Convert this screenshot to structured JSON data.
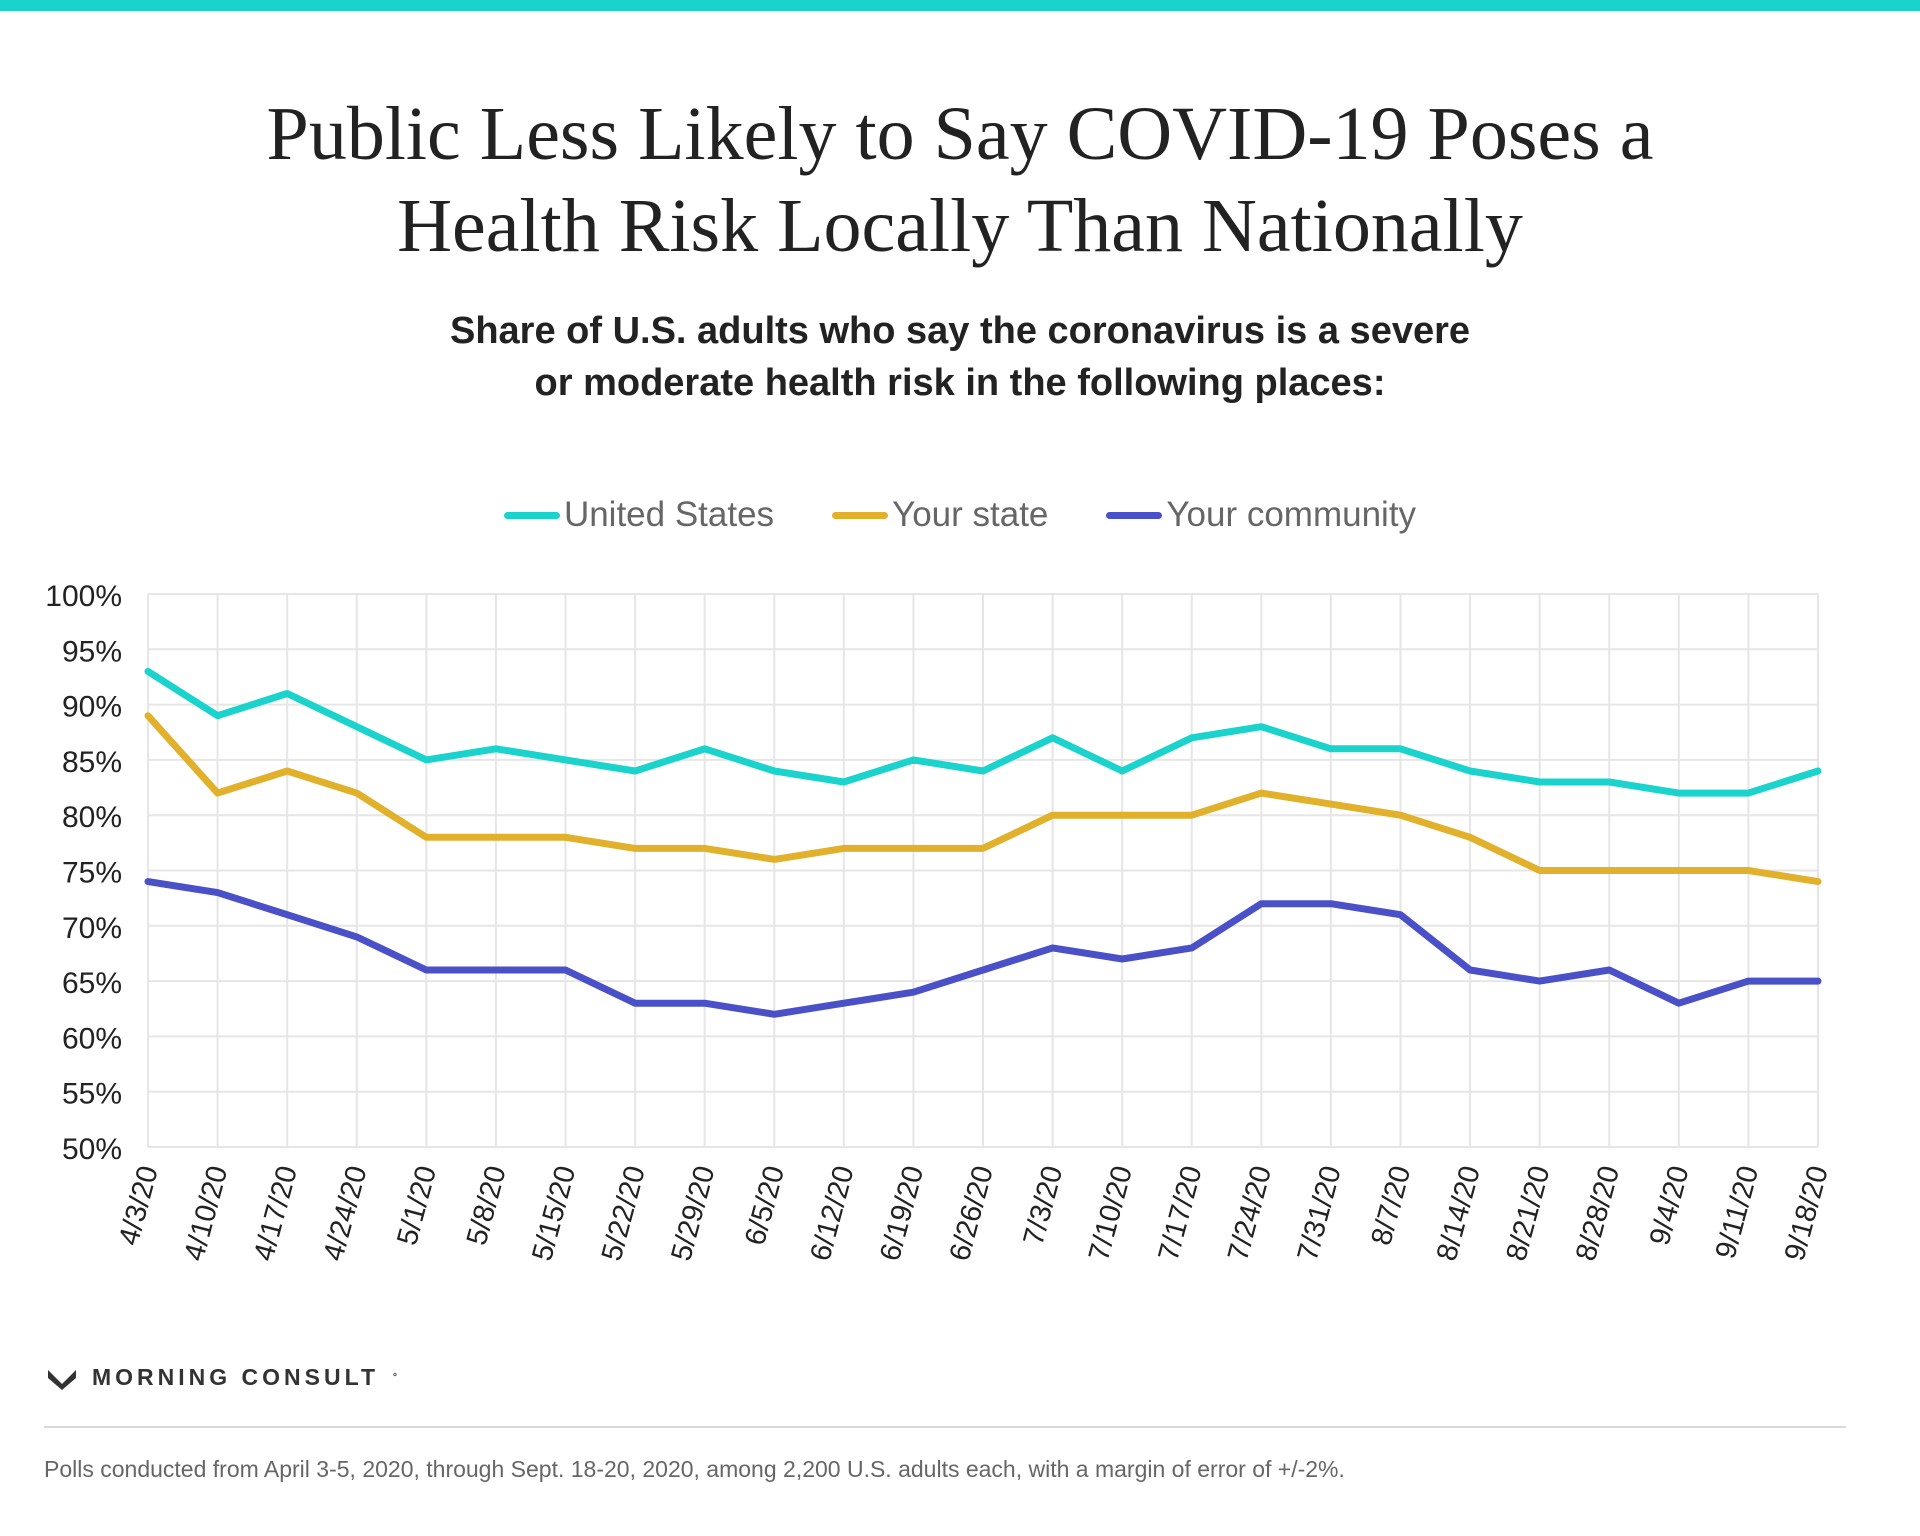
{
  "header": {
    "title_line1": "Public Less Likely to Say COVID-19 Poses a",
    "title_line2": "Health Risk Locally Than Nationally",
    "subtitle_line1": "Share of U.S. adults who say the coronavirus is a severe",
    "subtitle_line2": "or moderate health risk in the following places:"
  },
  "chart_data": {
    "type": "line",
    "x": [
      "4/3/20",
      "4/10/20",
      "4/17/20",
      "4/24/20",
      "5/1/20",
      "5/8/20",
      "5/15/20",
      "5/22/20",
      "5/29/20",
      "6/5/20",
      "6/12/20",
      "6/19/20",
      "6/26/20",
      "7/3/20",
      "7/10/20",
      "7/17/20",
      "7/24/20",
      "7/31/20",
      "8/7/20",
      "8/14/20",
      "8/21/20",
      "8/28/20",
      "9/4/20",
      "9/11/20",
      "9/18/20"
    ],
    "series": [
      {
        "name": "United States",
        "color": "#1ad3cc",
        "values": [
          93,
          89,
          91,
          88,
          85,
          86,
          85,
          84,
          86,
          84,
          83,
          85,
          84,
          87,
          84,
          87,
          88,
          86,
          86,
          84,
          83,
          83,
          82,
          82,
          84
        ]
      },
      {
        "name": "Your state",
        "color": "#e1b12c",
        "values": [
          89,
          82,
          84,
          82,
          78,
          78,
          78,
          77,
          77,
          76,
          77,
          77,
          77,
          80,
          80,
          80,
          82,
          81,
          80,
          78,
          75,
          75,
          75,
          75,
          74
        ]
      },
      {
        "name": "Your community",
        "color": "#4a50c8",
        "values": [
          74,
          73,
          71,
          69,
          66,
          66,
          66,
          63,
          63,
          62,
          63,
          64,
          66,
          68,
          67,
          68,
          72,
          72,
          71,
          66,
          65,
          66,
          63,
          65,
          65
        ]
      }
    ],
    "y_ticks": [
      "100%",
      "95%",
      "90%",
      "85%",
      "80%",
      "75%",
      "70%",
      "65%",
      "60%",
      "55%",
      "50%"
    ],
    "ylim": [
      50,
      100
    ],
    "y_step": 5,
    "grid": true,
    "legend_position": "top-center"
  },
  "branding": {
    "logo_text": "MORNING CONSULT",
    "logo_icon": "m-chevron-icon"
  },
  "footnote": "Polls conducted from April 3-5, 2020, through Sept. 18-20, 2020, among 2,200 U.S. adults each, with a margin of error of +/-2%."
}
